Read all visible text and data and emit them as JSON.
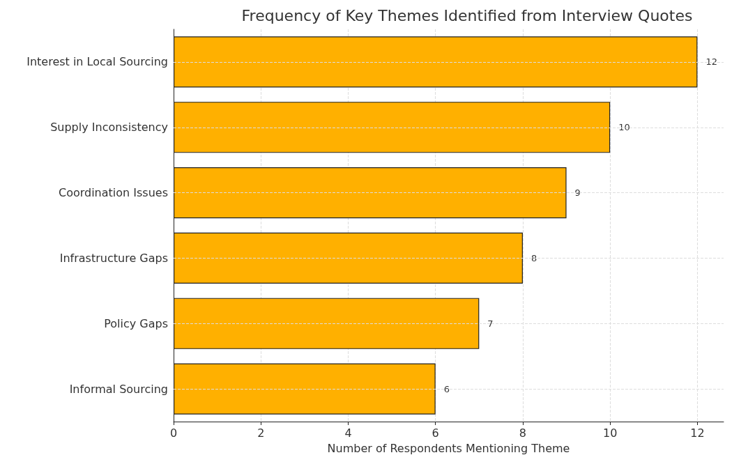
{
  "chart_data": {
    "type": "bar",
    "orientation": "horizontal",
    "title": "Frequency of Key Themes Identified from Interview Quotes",
    "xlabel": "Number of Respondents Mentioning Theme",
    "categories": [
      "Interest in Local Sourcing",
      "Supply Inconsistency",
      "Coordination Issues",
      "Infrastructure Gaps",
      "Policy Gaps",
      "Informal Sourcing"
    ],
    "values": [
      12,
      10,
      9,
      8,
      7,
      6
    ],
    "color": "#ffb000",
    "xlim": [
      0,
      12.6
    ],
    "xticks": [
      0,
      2,
      4,
      6,
      8,
      10,
      12
    ],
    "grid": true,
    "data_labels": true
  }
}
